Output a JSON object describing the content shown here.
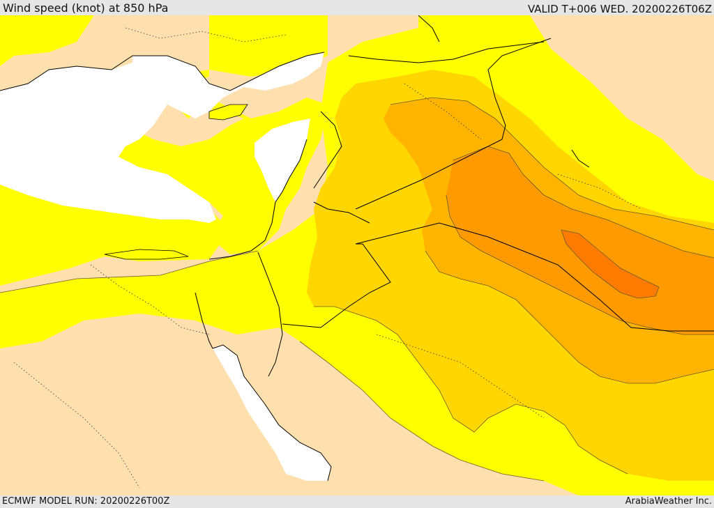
{
  "header": {
    "title": "Wind speed (knot) at 850 hPa",
    "valid_time": "VALID T+006 WED. 20200226T06Z"
  },
  "footer": {
    "model_run": "ECMWF MODEL RUN: 20200226T00Z",
    "credit": "ArabiaWeather Inc."
  },
  "map": {
    "field": "wind speed",
    "level": "850 hPa",
    "colors": {
      "land_calm": "#fde0ad",
      "sea_calm": "#ffffff",
      "band_1": "#ffff00",
      "band_2": "#ffd600",
      "band_3": "#ffb400",
      "band_4": "#ff9a00",
      "band_5": "#ff7a00",
      "contour_line": "#6b5a2a",
      "border_line": "#000000"
    }
  }
}
